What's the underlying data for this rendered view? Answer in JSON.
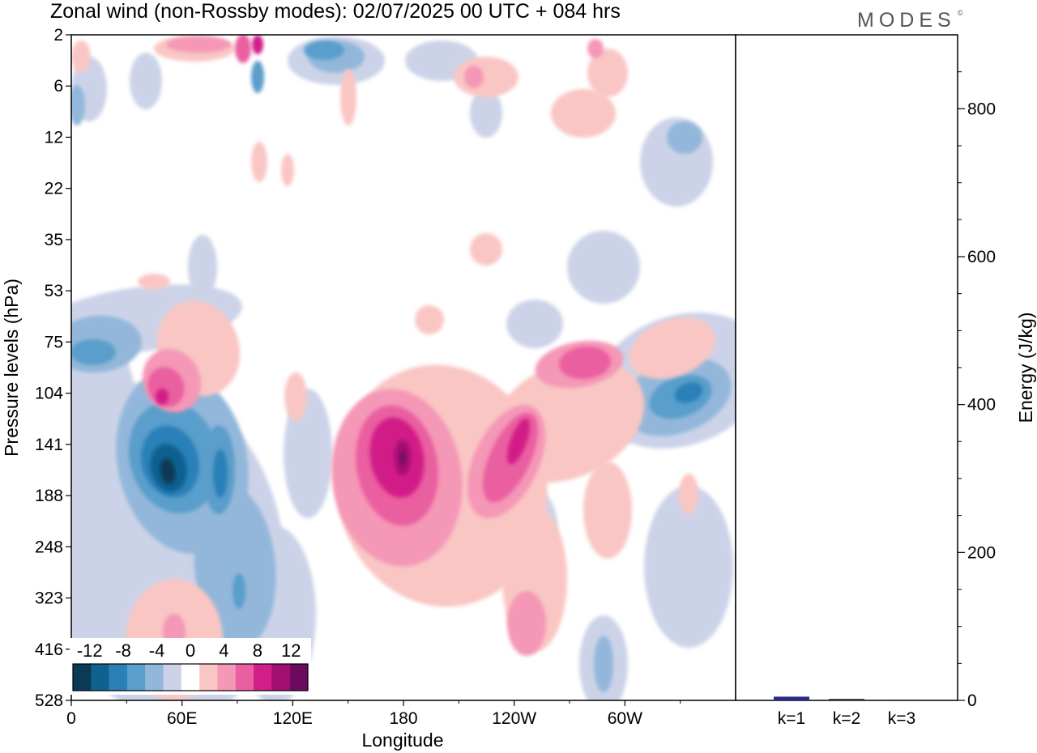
{
  "title": "Zonal wind (non-Rossby modes):  02/07/2025  00 UTC  + 084 hrs",
  "logo": "MODES",
  "logo_mark": "©",
  "chart_data": [
    {
      "type": "heatmap",
      "title": "Zonal wind (non-Rossby modes):  02/07/2025  00 UTC  + 084 hrs",
      "xlabel": "Longitude",
      "ylabel": "Pressure levels (hPa)",
      "x_ticks": [
        "0",
        "60E",
        "120E",
        "180",
        "120W",
        "60W"
      ],
      "x_tick_values": [
        0,
        60,
        120,
        180,
        240,
        300
      ],
      "xlim": [
        0,
        360
      ],
      "y_ticks": [
        "2",
        "6",
        "12",
        "22",
        "35",
        "53",
        "75",
        "104",
        "141",
        "188",
        "248",
        "323",
        "416",
        "528"
      ],
      "y_scale": "pressure levels (top to bottom)",
      "colorbar": {
        "labels": [
          "-12",
          "-8",
          "-4",
          "0",
          "4",
          "8",
          "12"
        ],
        "label_values": [
          -12,
          -8,
          -4,
          0,
          4,
          8,
          12
        ],
        "levels": [
          -14,
          -12,
          -10,
          -8,
          -6,
          -4,
          -2,
          2,
          4,
          6,
          8,
          10,
          12,
          14
        ],
        "colors": [
          "#0b3a55",
          "#10618f",
          "#2c80b8",
          "#5a9ecb",
          "#93b7da",
          "#ccd3e8",
          "#ffffff",
          "#f9c6c4",
          "#f597b6",
          "#ea5fa0",
          "#d11f88",
          "#a10f72",
          "#6b0a5e"
        ]
      },
      "features": [
        {
          "lon": 50,
          "level": "165",
          "value": -14,
          "sign": "negative"
        },
        {
          "lon": 40,
          "level": "95",
          "value": 9,
          "sign": "positive"
        },
        {
          "lon": 10,
          "level": "80",
          "value": -7,
          "sign": "negative"
        },
        {
          "lon": 180,
          "level": "155",
          "value": 13,
          "sign": "positive"
        },
        {
          "lon": 240,
          "level": "150",
          "value": 11,
          "sign": "positive"
        },
        {
          "lon": 280,
          "level": "85",
          "value": 8,
          "sign": "positive"
        },
        {
          "lon": 330,
          "level": "115",
          "value": -8,
          "sign": "negative"
        },
        {
          "lon": 100,
          "level": "2",
          "value": 12,
          "sign": "positive"
        },
        {
          "lon": 125,
          "level": "3",
          "value": -8,
          "sign": "negative"
        }
      ]
    },
    {
      "type": "bar",
      "categories": [
        "k=1",
        "k=2",
        "k=3"
      ],
      "values": [
        5,
        2,
        1
      ],
      "ylabel": "Energy (J/kg)",
      "y_ticks": [
        "0",
        "200",
        "400",
        "600",
        "800"
      ],
      "y_tick_values": [
        0,
        200,
        400,
        600,
        800
      ],
      "ylim": [
        0,
        900
      ],
      "colors": [
        "#2a2a8c",
        "#333333",
        "#333333"
      ]
    }
  ]
}
